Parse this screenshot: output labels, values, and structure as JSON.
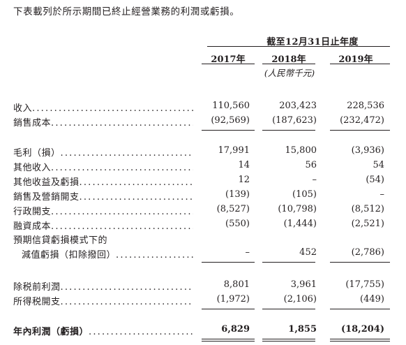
{
  "intro": "下表載列於所示期間已終止經營業務的利潤或虧損。",
  "header": {
    "period": "截至12月31日止年度",
    "years": [
      "2017年",
      "2018年",
      "2019年"
    ],
    "unit": "(人民幣千元)"
  },
  "rows": [
    {
      "label": "收入",
      "values": [
        "110,560",
        "203,423",
        "228,536"
      ]
    },
    {
      "label": "銷售成本",
      "values": [
        "(92,569)",
        "(187,623)",
        "(232,472)"
      ]
    },
    {
      "label": "毛利（損）",
      "values": [
        "17,991",
        "15,800",
        "(3,936)"
      ]
    },
    {
      "label": "其他收入",
      "values": [
        "14",
        "56",
        "54"
      ]
    },
    {
      "label": "其他收益及虧損",
      "values": [
        "12",
        "–",
        "(54)"
      ]
    },
    {
      "label": "銷售及營銷開支",
      "values": [
        "(139)",
        "(105)",
        "–"
      ]
    },
    {
      "label": "行政開支",
      "values": [
        "(8,527)",
        "(10,798)",
        "(8,512)"
      ]
    },
    {
      "label": "融資成本",
      "values": [
        "(550)",
        "(1,444)",
        "(2,521)"
      ]
    },
    {
      "label": "預期信貸虧損模式下的",
      "values": [
        "",
        "",
        ""
      ]
    },
    {
      "label": "減值虧損（扣除撥回）",
      "values": [
        "–",
        "452",
        "(2,786)"
      ]
    },
    {
      "label": "除税前利潤",
      "values": [
        "8,801",
        "3,961",
        "(17,755)"
      ]
    },
    {
      "label": "所得税開支",
      "values": [
        "(1,972)",
        "(2,106)",
        "(449)"
      ]
    },
    {
      "label": "年內利潤（虧損）",
      "values": [
        "6,829",
        "1,855",
        "(18,204)"
      ]
    }
  ]
}
